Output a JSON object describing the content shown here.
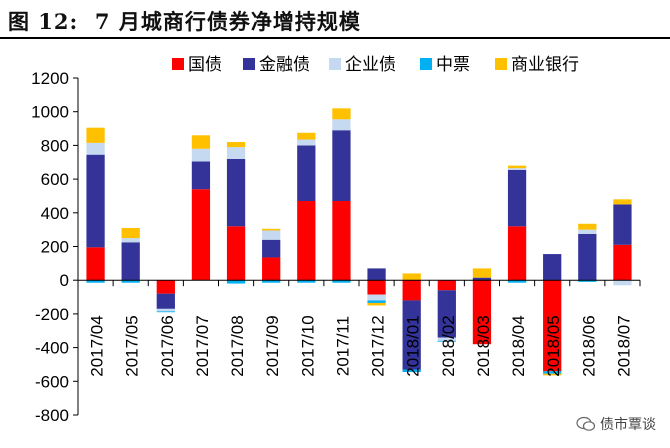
{
  "header": {
    "figure_label": "图 12:",
    "title": "7 月城商行债券净增持规模"
  },
  "watermark": {
    "text": "债市覃谈",
    "icon": "wechat-icon"
  },
  "chart_data": {
    "type": "bar",
    "stacked": true,
    "categories": [
      "2017/04",
      "2017/05",
      "2017/06",
      "2017/07",
      "2017/08",
      "2017/09",
      "2017/10",
      "2017/11",
      "2017/12",
      "2018/01",
      "2018/02",
      "2018/03",
      "2018/04",
      "2018/05",
      "2018/06",
      "2018/07"
    ],
    "series": [
      {
        "name": "国债",
        "color": "#ff0000",
        "values": [
          195,
          0,
          -80,
          540,
          320,
          135,
          470,
          470,
          -85,
          -120,
          -60,
          -380,
          320,
          -540,
          0,
          210
        ]
      },
      {
        "name": "金融债",
        "color": "#333399",
        "values": [
          550,
          225,
          -90,
          165,
          400,
          105,
          330,
          420,
          70,
          -410,
          -280,
          15,
          335,
          155,
          275,
          240
        ]
      },
      {
        "name": "企业债",
        "color": "#c5d9f1",
        "values": [
          70,
          25,
          -15,
          75,
          70,
          55,
          35,
          65,
          -35,
          0,
          -20,
          0,
          10,
          0,
          25,
          -30
        ]
      },
      {
        "name": "中票",
        "color": "#00b0f0",
        "values": [
          -15,
          -15,
          -5,
          0,
          -20,
          -15,
          -15,
          -15,
          -15,
          -15,
          -5,
          0,
          -15,
          -15,
          -10,
          0
        ]
      },
      {
        "name": "商业银行",
        "color": "#ffc000",
        "values": [
          90,
          60,
          0,
          80,
          30,
          10,
          40,
          65,
          -15,
          40,
          0,
          55,
          15,
          -10,
          35,
          30
        ]
      }
    ],
    "ylim": [
      -800,
      1200
    ],
    "yticks": [
      -800,
      -600,
      -400,
      -200,
      0,
      200,
      400,
      600,
      800,
      1000,
      1200
    ],
    "xlabel": "",
    "ylabel": "",
    "grid": false,
    "legend": "top"
  }
}
